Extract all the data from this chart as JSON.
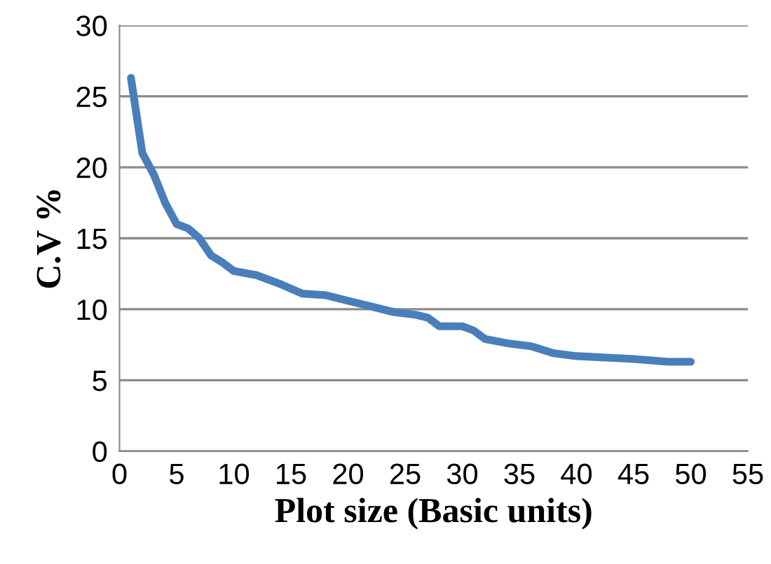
{
  "chart_data": {
    "type": "line",
    "xlabel": "Plot size (Basic units)",
    "ylabel": "C.V %",
    "xlim": [
      0,
      55
    ],
    "xticks": [
      0,
      5,
      10,
      15,
      20,
      25,
      30,
      35,
      40,
      45,
      50,
      55
    ],
    "ylim": [
      0,
      30
    ],
    "yticks": [
      0,
      5,
      10,
      15,
      20,
      25,
      30
    ],
    "grid": "y",
    "marker": "none",
    "line_style": "solid",
    "series": [
      {
        "color": "#4a7ebb",
        "x": [
          1,
          2,
          3,
          4,
          5,
          6,
          7,
          8,
          9,
          10,
          12,
          14,
          16,
          18,
          20,
          22,
          24,
          26,
          27,
          28,
          30,
          31,
          32,
          34,
          36,
          38,
          40,
          45,
          48,
          50
        ],
        "values": [
          26.3,
          21,
          19.5,
          17.5,
          16,
          15.7,
          15,
          13.8,
          13.3,
          12.7,
          12.4,
          11.8,
          11.1,
          11.0,
          10.6,
          10.2,
          9.8,
          9.6,
          9.4,
          8.8,
          8.8,
          8.5,
          7.9,
          7.6,
          7.4,
          6.9,
          6.7,
          6.5,
          6.3,
          6.3
        ]
      }
    ]
  }
}
